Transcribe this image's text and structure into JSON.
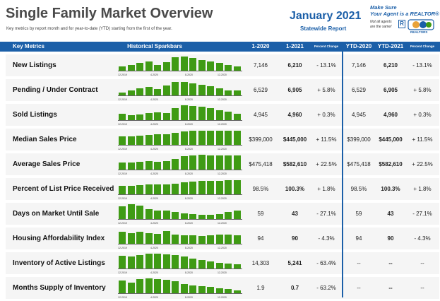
{
  "header": {
    "title": "Single Family Market Overview",
    "subtitle": "Key metrics by report month and for year-to-date (YTD) starting from the first of the year.",
    "month": "January 2021",
    "scope": "Statewide Report"
  },
  "promo": {
    "line1": "Make Sure",
    "line2": "Your Agent is a REALTOR®",
    "note": "Not all agents are the same!",
    "r_mark": "R",
    "logo_text": "REALTORS"
  },
  "columns": {
    "key_metrics": "Key Metrics",
    "sparkbars": "Historical Sparkbars",
    "prev": "1-2020",
    "curr": "1-2021",
    "pct": "Percent Change",
    "ytd_prev": "YTD-2020",
    "ytd_curr": "YTD-2021",
    "ytd_pct": "Percent Change"
  },
  "ticks": [
    "12-2019",
    "4-2020",
    "8-2020",
    "12-2020"
  ],
  "colors": {
    "brand_blue": "#1b5fa8",
    "bar_green": "#3f9b14",
    "row_bg": "#f5f5f5"
  },
  "rows": [
    {
      "label": "New Listings",
      "prev": "7,146",
      "curr": "6,210",
      "pct": "- 13.1%",
      "ytd_prev": "7,146",
      "ytd_curr": "6,210",
      "ytd_pct": "- 13.1%",
      "bars": [
        0.25,
        0.35,
        0.5,
        0.6,
        0.35,
        0.55,
        0.85,
        0.9,
        0.8,
        0.7,
        0.6,
        0.5,
        0.35,
        0.25
      ]
    },
    {
      "label": "Pending / Under Contract",
      "prev": "6,529",
      "curr": "6,905",
      "pct": "+ 5.8%",
      "ytd_prev": "6,529",
      "ytd_curr": "6,905",
      "ytd_pct": "+ 5.8%",
      "bars": [
        0.2,
        0.3,
        0.45,
        0.55,
        0.4,
        0.65,
        0.85,
        0.85,
        0.75,
        0.7,
        0.6,
        0.45,
        0.3,
        0.3
      ]
    },
    {
      "label": "Sold Listings",
      "prev": "4,945",
      "curr": "4,960",
      "pct": "+ 0.3%",
      "ytd_prev": "4,945",
      "ytd_curr": "4,960",
      "ytd_pct": "+ 0.3%",
      "bars": [
        0.4,
        0.3,
        0.35,
        0.45,
        0.5,
        0.45,
        0.75,
        0.95,
        0.9,
        0.85,
        0.75,
        0.65,
        0.55,
        0.4
      ]
    },
    {
      "label": "Median Sales Price",
      "prev": "$399,000",
      "curr": "$445,000",
      "pct": "+ 11.5%",
      "ytd_prev": "$399,000",
      "ytd_curr": "$445,000",
      "ytd_pct": "+ 11.5%",
      "bars": [
        0.55,
        0.55,
        0.6,
        0.65,
        0.7,
        0.7,
        0.75,
        0.85,
        0.9,
        0.9,
        0.9,
        0.9,
        0.9,
        0.9
      ]
    },
    {
      "label": "Average Sales Price",
      "prev": "$475,418",
      "curr": "$582,610",
      "pct": "+ 22.5%",
      "ytd_prev": "$475,418",
      "ytd_curr": "$582,610",
      "ytd_pct": "+ 22.5%",
      "bars": [
        0.45,
        0.45,
        0.5,
        0.55,
        0.5,
        0.55,
        0.7,
        0.85,
        0.9,
        0.95,
        0.9,
        0.9,
        0.9,
        0.9
      ]
    },
    {
      "label": "Percent of List Price Received",
      "prev": "98.5%",
      "curr": "100.3%",
      "pct": "+ 1.8%",
      "ytd_prev": "98.5%",
      "ytd_curr": "100.3%",
      "ytd_pct": "+ 1.8%",
      "bars": [
        0.55,
        0.55,
        0.6,
        0.65,
        0.65,
        0.65,
        0.7,
        0.75,
        0.8,
        0.85,
        0.85,
        0.85,
        0.9,
        0.9
      ]
    },
    {
      "label": "Days on Market Until Sale",
      "prev": "59",
      "curr": "43",
      "pct": "- 27.1%",
      "ytd_prev": "59",
      "ytd_curr": "43",
      "ytd_pct": "- 27.1%",
      "bars": [
        0.8,
        0.95,
        0.85,
        0.65,
        0.55,
        0.55,
        0.45,
        0.35,
        0.3,
        0.25,
        0.25,
        0.3,
        0.45,
        0.55
      ]
    },
    {
      "label": "Housing Affordability Index",
      "prev": "94",
      "curr": "90",
      "pct": "- 4.3%",
      "ytd_prev": "94",
      "ytd_curr": "90",
      "ytd_pct": "- 4.3%",
      "bars": [
        0.75,
        0.7,
        0.75,
        0.7,
        0.65,
        0.8,
        0.6,
        0.55,
        0.55,
        0.5,
        0.55,
        0.6,
        0.6,
        0.55
      ]
    },
    {
      "label": "Inventory of Active Listings",
      "prev": "14,303",
      "curr": "5,241",
      "pct": "- 63.4%",
      "ytd_prev": "--",
      "ytd_curr": "--",
      "ytd_pct": "--",
      "bars": [
        0.8,
        0.75,
        0.85,
        0.95,
        0.95,
        0.9,
        0.85,
        0.75,
        0.65,
        0.55,
        0.45,
        0.35,
        0.3,
        0.25
      ]
    },
    {
      "label": "Months Supply of Inventory",
      "prev": "1.9",
      "curr": "0.7",
      "pct": "- 63.2%",
      "ytd_prev": "--",
      "ytd_curr": "--",
      "ytd_pct": "--",
      "bars": [
        0.8,
        0.7,
        0.9,
        0.95,
        0.9,
        0.85,
        0.75,
        0.6,
        0.5,
        0.45,
        0.4,
        0.3,
        0.25,
        0.2
      ]
    }
  ]
}
